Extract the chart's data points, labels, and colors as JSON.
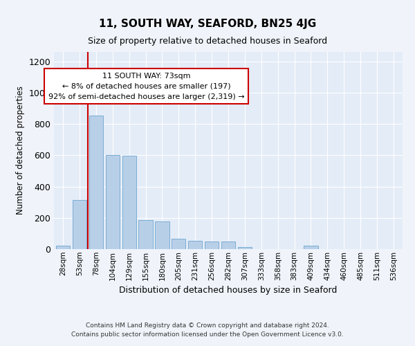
{
  "title": "11, SOUTH WAY, SEAFORD, BN25 4JG",
  "subtitle": "Size of property relative to detached houses in Seaford",
  "xlabel": "Distribution of detached houses by size in Seaford",
  "ylabel": "Number of detached properties",
  "bar_labels": [
    "28sqm",
    "53sqm",
    "78sqm",
    "104sqm",
    "129sqm",
    "155sqm",
    "180sqm",
    "205sqm",
    "231sqm",
    "256sqm",
    "282sqm",
    "307sqm",
    "333sqm",
    "358sqm",
    "383sqm",
    "409sqm",
    "434sqm",
    "460sqm",
    "485sqm",
    "511sqm",
    "536sqm"
  ],
  "bar_values": [
    20,
    315,
    855,
    600,
    595,
    185,
    175,
    65,
    55,
    50,
    50,
    15,
    0,
    0,
    0,
    20,
    0,
    0,
    0,
    0,
    0
  ],
  "bar_color": "#b8cfe8",
  "bar_edge_color": "#7aadd4",
  "vline_color": "#cc0000",
  "ylim": [
    0,
    1260
  ],
  "yticks": [
    0,
    200,
    400,
    600,
    800,
    1000,
    1200
  ],
  "annotation_text": "11 SOUTH WAY: 73sqm\n← 8% of detached houses are smaller (197)\n92% of semi-detached houses are larger (2,319) →",
  "annotation_box_color": "#ffffff",
  "annotation_border_color": "#cc0000",
  "footer_line1": "Contains HM Land Registry data © Crown copyright and database right 2024.",
  "footer_line2": "Contains public sector information licensed under the Open Government Licence v3.0.",
  "background_color": "#f0f4fa",
  "plot_bg_color": "#e4ecf7"
}
